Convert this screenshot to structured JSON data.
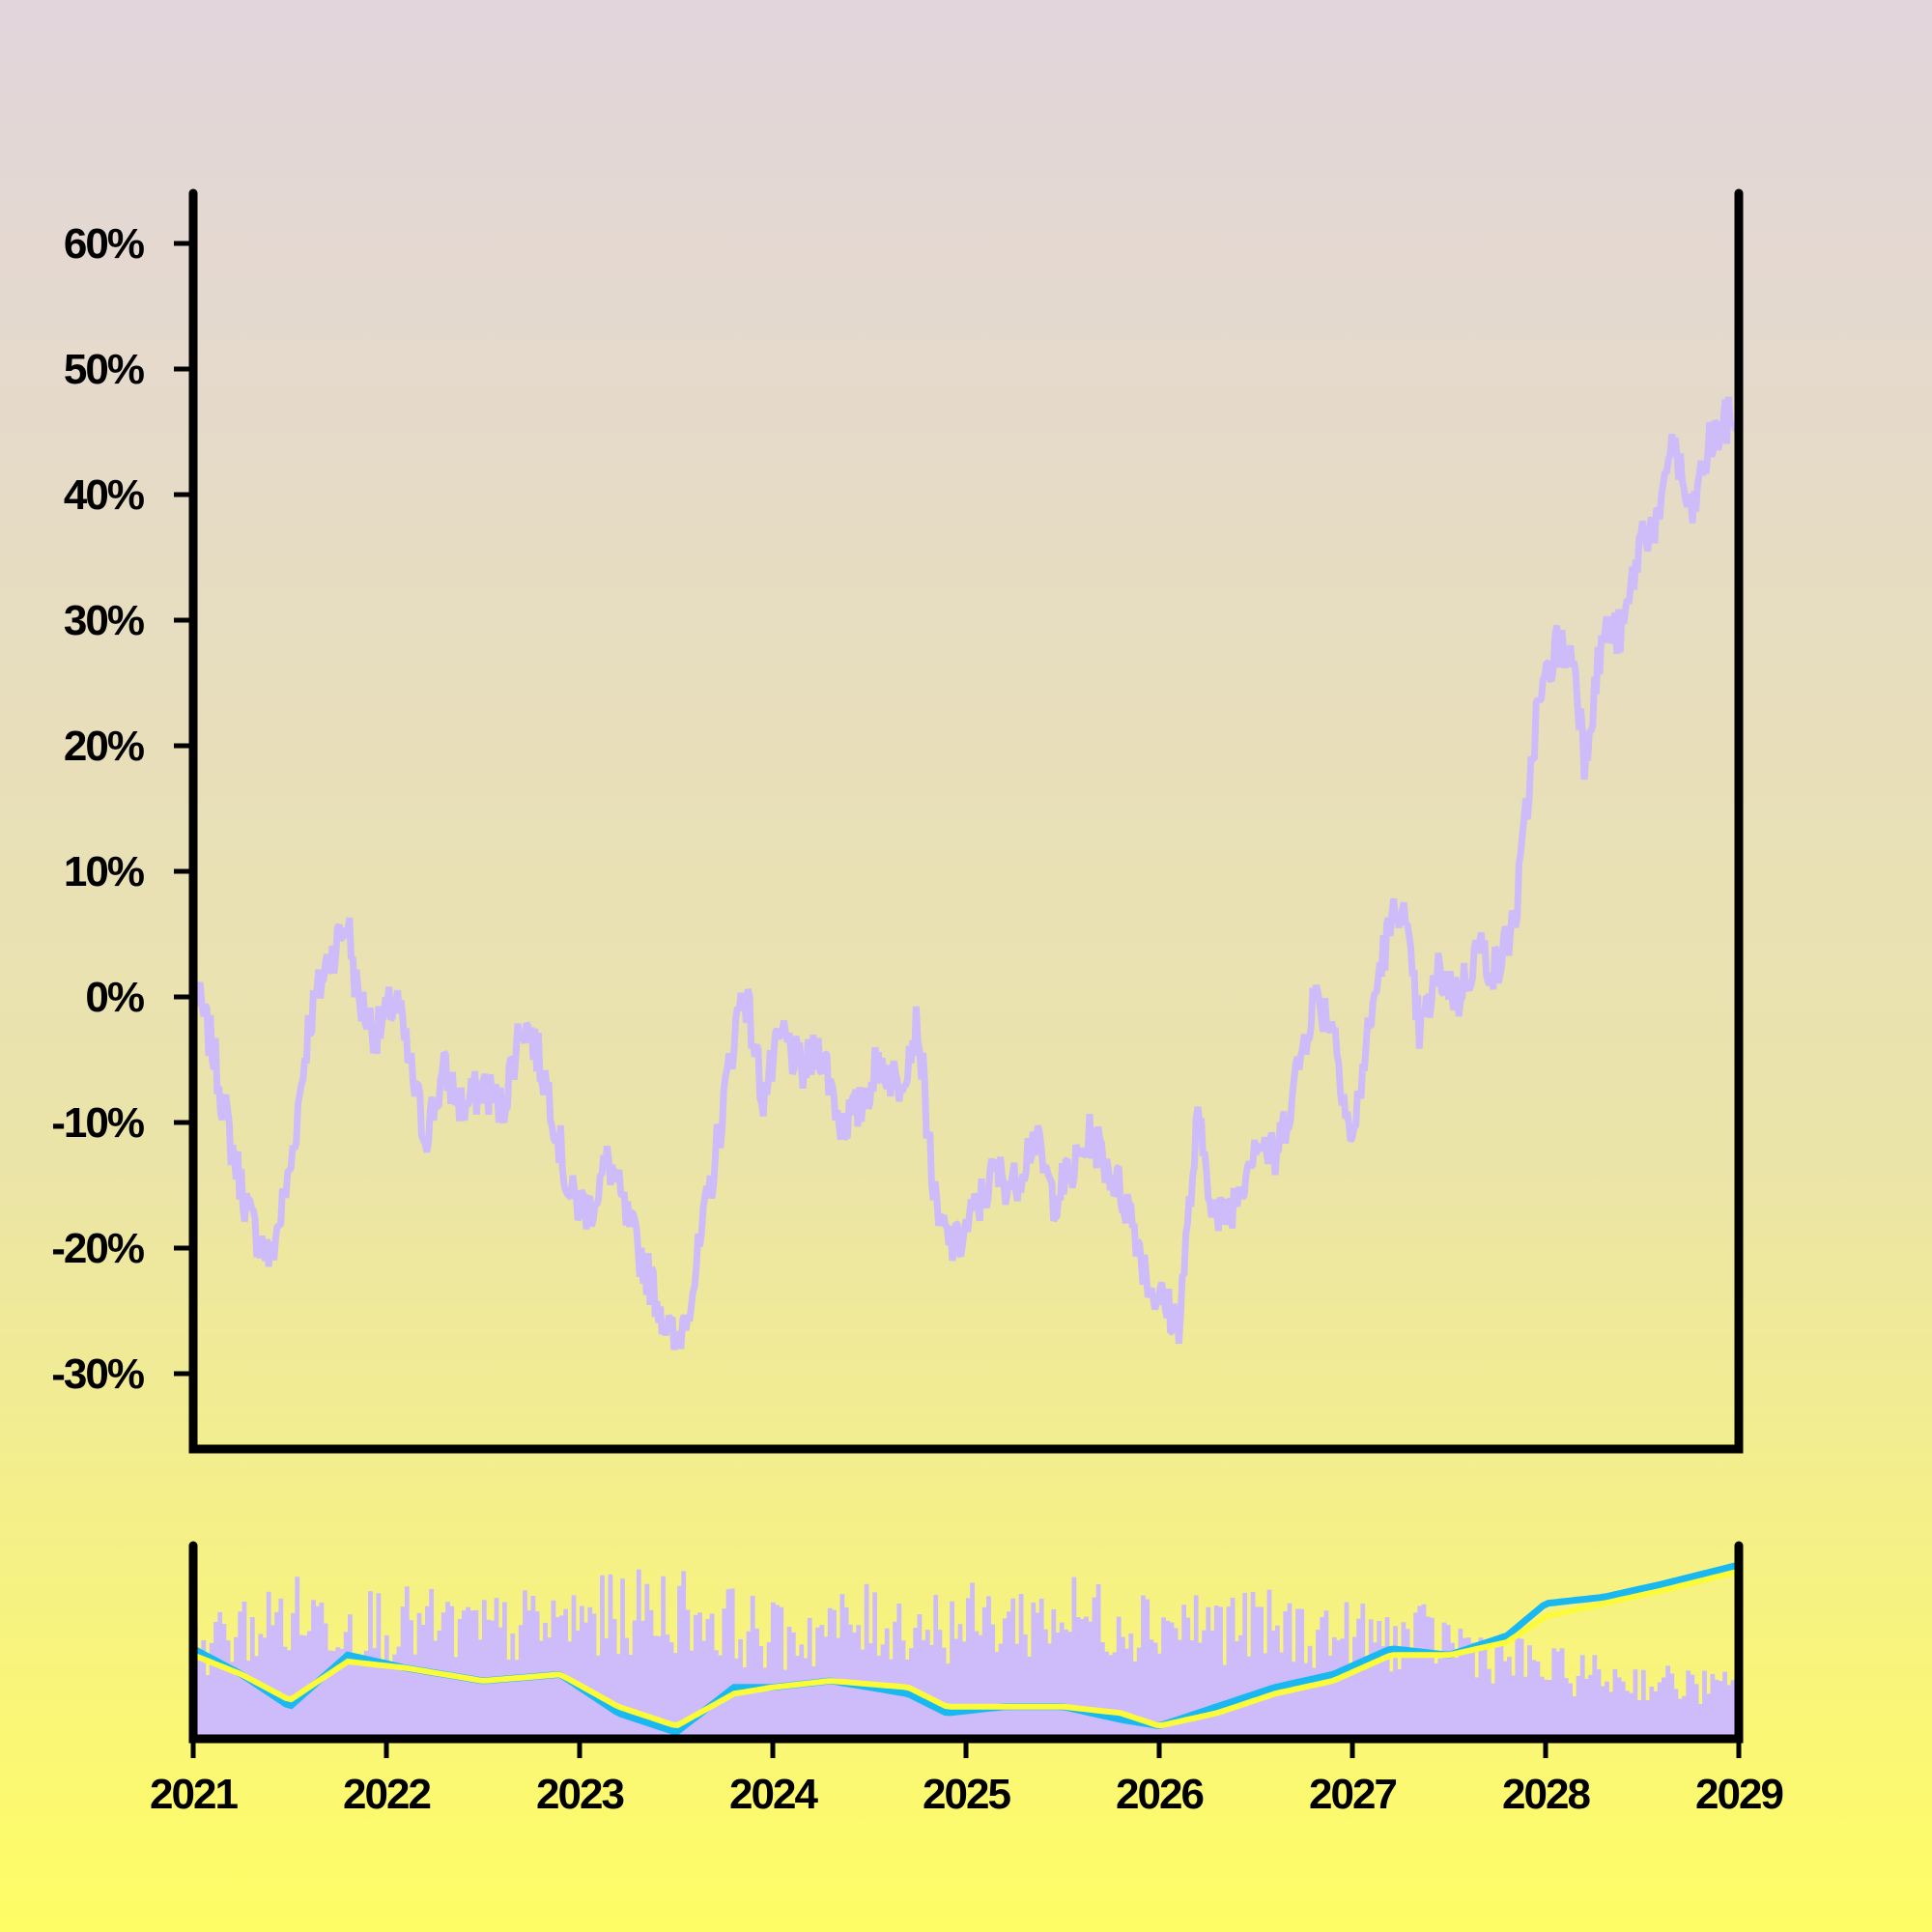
{
  "chart_data": {
    "type": "line",
    "title": "",
    "xlabel": "",
    "ylabel": "",
    "x_ticks": [
      "2021",
      "2022",
      "2023",
      "2024",
      "2025",
      "2026",
      "2027",
      "2028",
      "2029"
    ],
    "y_ticks": [
      "60%",
      "50%",
      "40%",
      "30%",
      "20%",
      "10%",
      "0%",
      "-10%",
      "-20%",
      "-30%"
    ],
    "y_tick_values": [
      60,
      50,
      40,
      30,
      20,
      10,
      0,
      -10,
      -20,
      -30
    ],
    "xlim": [
      2021.0,
      2029.0
    ],
    "ylim": [
      -36,
      64
    ],
    "grid": false,
    "legend": "none",
    "colors": {
      "price": "#cdbcf9",
      "volume": "#cdbcf9",
      "ma_fast": "#1ab8f0",
      "ma_slow": "#fbfb3a",
      "axes": "#000000"
    },
    "series": [
      {
        "role": "price",
        "unit": "%",
        "x": [
          2021.0,
          2021.1,
          2021.2,
          2021.3,
          2021.4,
          2021.5,
          2021.6,
          2021.7,
          2021.8,
          2021.85,
          2021.95,
          2022.05,
          2022.1,
          2022.2,
          2022.3,
          2022.4,
          2022.5,
          2022.6,
          2022.7,
          2022.75,
          2022.85,
          2022.95,
          2023.05,
          2023.15,
          2023.25,
          2023.35,
          2023.45,
          2023.5,
          2023.6,
          2023.7,
          2023.8,
          2023.85,
          2023.95,
          2024.05,
          2024.15,
          2024.25,
          2024.35,
          2024.45,
          2024.55,
          2024.65,
          2024.75,
          2024.85,
          2024.95,
          2025.05,
          2025.15,
          2025.25,
          2025.35,
          2025.45,
          2025.55,
          2025.65,
          2025.75,
          2025.85,
          2025.95,
          2026.0,
          2026.1,
          2026.2,
          2026.3,
          2026.4,
          2026.5,
          2026.6,
          2026.7,
          2026.8,
          2026.9,
          2027.0,
          2027.05,
          2027.15,
          2027.25,
          2027.35,
          2027.45,
          2027.55,
          2027.65,
          2027.75,
          2027.85,
          2027.95,
          2028.05,
          2028.15,
          2028.2,
          2028.3,
          2028.4,
          2028.5,
          2028.6,
          2028.65,
          2028.75,
          2028.85,
          2028.95,
          2029.0
        ],
        "y": [
          1,
          -4,
          -12,
          -18,
          -21,
          -14,
          -2,
          3,
          6,
          0,
          -3,
          0,
          -4,
          -11,
          -6,
          -9,
          -7,
          -9,
          -2,
          -3,
          -8,
          -16,
          -17,
          -13,
          -18,
          -22,
          -26,
          -28,
          -22,
          -13,
          -3,
          1,
          -8,
          -3,
          -6,
          -4,
          -10,
          -9,
          -5,
          -7,
          -2,
          -18,
          -20,
          -17,
          -14,
          -15,
          -11,
          -16,
          -14,
          -11,
          -14,
          -17,
          -23,
          -24,
          -26,
          -10,
          -18,
          -16,
          -11,
          -13,
          -7,
          0,
          -2,
          -12,
          -6,
          3,
          8,
          -3,
          2,
          0,
          4,
          2,
          7,
          22,
          28,
          27,
          19,
          29,
          29,
          37,
          38,
          45,
          38,
          44,
          46,
          46
        ]
      },
      {
        "role": "volume",
        "x": [
          2021.0,
          2021.5,
          2022.0,
          2022.5,
          2023.0,
          2023.5,
          2024.0,
          2024.5,
          2025.0,
          2025.5,
          2026.0,
          2026.5,
          2027.0,
          2027.5,
          2028.0,
          2028.5,
          2029.0
        ],
        "y": [
          0.55,
          0.75,
          0.7,
          0.65,
          0.72,
          0.8,
          0.62,
          0.7,
          0.7,
          0.75,
          0.72,
          0.68,
          0.62,
          0.6,
          0.42,
          0.35,
          0.3
        ]
      },
      {
        "role": "ma_fast",
        "x": [
          2021.0,
          2021.25,
          2021.5,
          2021.8,
          2022.1,
          2022.5,
          2022.9,
          2023.2,
          2023.5,
          2023.8,
          2024.0,
          2024.3,
          2024.7,
          2024.9,
          2025.2,
          2025.5,
          2025.8,
          2026.0,
          2026.3,
          2026.6,
          2026.9,
          2027.2,
          2027.5,
          2027.8,
          2028.0,
          2028.3,
          2028.6,
          2029.0
        ],
        "y": [
          -6,
          -10,
          -15,
          -7,
          -9,
          -11,
          -10,
          -16,
          -19,
          -12,
          -12,
          -11,
          -13,
          -16,
          -15,
          -15,
          -17,
          -18,
          -15,
          -12,
          -10,
          -6,
          -7,
          -4,
          1,
          2,
          4,
          7
        ]
      },
      {
        "role": "ma_slow",
        "x": [
          2021.0,
          2021.25,
          2021.5,
          2021.8,
          2022.1,
          2022.5,
          2022.9,
          2023.2,
          2023.5,
          2023.8,
          2024.0,
          2024.3,
          2024.7,
          2024.9,
          2025.2,
          2025.5,
          2025.8,
          2026.0,
          2026.3,
          2026.6,
          2026.9,
          2027.2,
          2027.5,
          2027.8,
          2028.0,
          2028.3,
          2028.6,
          2029.0
        ],
        "y": [
          -7,
          -10,
          -14,
          -8,
          -9,
          -11,
          -10,
          -15,
          -18,
          -13,
          -12,
          -11,
          -12,
          -15,
          -15,
          -15,
          -16,
          -18,
          -16,
          -13,
          -11,
          -7,
          -7,
          -5,
          -1,
          1,
          3,
          6
        ]
      }
    ]
  }
}
